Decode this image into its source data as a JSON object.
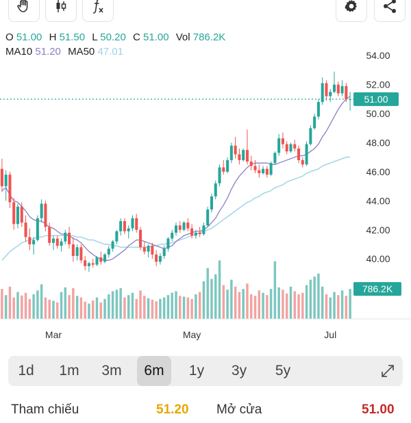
{
  "toolbar": {
    "buttons": [
      {
        "name": "hand-icon"
      },
      {
        "name": "candlestick-icon"
      },
      {
        "name": "function-icon"
      },
      {
        "name": "gear-icon"
      },
      {
        "name": "share-icon"
      }
    ]
  },
  "ohlc": {
    "o_label": "O",
    "o": "51.00",
    "h_label": "H",
    "h": "51.50",
    "l_label": "L",
    "l": "50.20",
    "c_label": "C",
    "c": "51.00",
    "vol_label": "Vol",
    "vol": "786.2K"
  },
  "ma": {
    "ma10_label": "MA10",
    "ma10": "51.20",
    "ma50_label": "MA50",
    "ma50": "47.01"
  },
  "colors": {
    "up": "#26a69a",
    "down": "#ef5350",
    "up_volume": "#7cc7bf",
    "down_volume": "#f2a3a1",
    "ma10": "#8e7cc3",
    "ma50": "#a6d8e6",
    "badge": "#26a69a"
  },
  "chart_data": {
    "type": "candlestick",
    "price_axis": {
      "ticks": [
        "54.00",
        "52.00",
        "50.00",
        "48.00",
        "46.00",
        "44.00",
        "42.00",
        "40.00"
      ],
      "range": [
        38.5,
        55.0
      ]
    },
    "x_labels": [
      "Mar",
      "May",
      "Jul"
    ],
    "last_price_label": "51.00",
    "last_volume_label": "786.2K",
    "volume_range": [
      0,
      1600
    ],
    "candles": [
      [
        46.2,
        46.9,
        44.6,
        45.0
      ],
      [
        45.0,
        46.1,
        44.0,
        45.8
      ],
      [
        45.8,
        46.0,
        43.5,
        43.9
      ],
      [
        43.9,
        44.2,
        42.0,
        42.4
      ],
      [
        42.4,
        43.8,
        42.1,
        43.6
      ],
      [
        43.6,
        43.9,
        42.2,
        42.5
      ],
      [
        42.5,
        43.0,
        41.2,
        41.5
      ],
      [
        41.5,
        42.1,
        40.6,
        41.0
      ],
      [
        41.0,
        41.5,
        40.3,
        41.3
      ],
      [
        41.3,
        43.0,
        41.2,
        42.8
      ],
      [
        42.8,
        44.1,
        42.5,
        43.8
      ],
      [
        43.8,
        44.0,
        41.9,
        42.2
      ],
      [
        42.2,
        42.5,
        40.9,
        41.1
      ],
      [
        41.1,
        41.6,
        40.6,
        41.4
      ],
      [
        41.4,
        41.6,
        40.7,
        40.9
      ],
      [
        40.9,
        41.4,
        40.5,
        41.2
      ],
      [
        41.2,
        42.0,
        41.0,
        41.8
      ],
      [
        41.8,
        42.2,
        40.7,
        41.0
      ],
      [
        41.0,
        41.5,
        39.8,
        40.2
      ],
      [
        40.2,
        41.0,
        39.9,
        40.8
      ],
      [
        40.8,
        41.0,
        39.7,
        39.9
      ],
      [
        39.9,
        40.2,
        39.2,
        39.5
      ],
      [
        39.5,
        39.8,
        39.1,
        39.7
      ],
      [
        39.7,
        40.0,
        39.4,
        39.6
      ],
      [
        39.6,
        40.2,
        39.5,
        40.1
      ],
      [
        40.1,
        40.5,
        39.6,
        39.8
      ],
      [
        39.8,
        40.4,
        39.7,
        40.3
      ],
      [
        40.3,
        40.9,
        40.1,
        40.7
      ],
      [
        40.7,
        41.3,
        40.5,
        41.2
      ],
      [
        41.2,
        42.0,
        41.0,
        41.9
      ],
      [
        41.9,
        42.8,
        41.6,
        42.6
      ],
      [
        42.6,
        42.8,
        41.7,
        41.9
      ],
      [
        41.9,
        42.3,
        41.4,
        42.1
      ],
      [
        42.1,
        43.0,
        41.9,
        42.8
      ],
      [
        42.8,
        43.1,
        41.8,
        42.0
      ],
      [
        42.0,
        42.2,
        40.6,
        40.8
      ],
      [
        40.8,
        41.2,
        40.3,
        40.5
      ],
      [
        40.5,
        41.0,
        40.1,
        40.9
      ],
      [
        40.9,
        41.1,
        40.0,
        40.3
      ],
      [
        40.3,
        40.6,
        39.5,
        39.8
      ],
      [
        39.8,
        40.4,
        39.6,
        40.2
      ],
      [
        40.2,
        40.9,
        40.0,
        40.7
      ],
      [
        40.7,
        41.5,
        40.5,
        41.4
      ],
      [
        41.4,
        42.0,
        41.2,
        41.8
      ],
      [
        41.8,
        42.5,
        41.6,
        42.3
      ],
      [
        42.3,
        42.6,
        41.8,
        42.0
      ],
      [
        42.0,
        42.6,
        41.9,
        42.5
      ],
      [
        42.5,
        42.8,
        41.9,
        42.1
      ],
      [
        42.1,
        42.4,
        41.4,
        41.6
      ],
      [
        41.6,
        42.0,
        41.4,
        41.8
      ],
      [
        41.8,
        42.2,
        41.5,
        41.7
      ],
      [
        41.7,
        42.5,
        41.6,
        42.3
      ],
      [
        42.3,
        43.6,
        42.2,
        43.4
      ],
      [
        43.4,
        44.5,
        43.2,
        44.3
      ],
      [
        44.3,
        45.4,
        44.1,
        45.2
      ],
      [
        45.2,
        46.5,
        45.0,
        46.3
      ],
      [
        46.3,
        46.8,
        45.8,
        46.0
      ],
      [
        46.0,
        47.0,
        45.9,
        46.8
      ],
      [
        46.8,
        48.0,
        46.6,
        47.8
      ],
      [
        47.8,
        48.4,
        46.9,
        47.2
      ],
      [
        47.2,
        47.6,
        46.5,
        46.8
      ],
      [
        46.8,
        47.6,
        46.7,
        47.5
      ],
      [
        47.5,
        48.9,
        46.5,
        46.7
      ],
      [
        46.7,
        47.1,
        46.1,
        46.4
      ],
      [
        46.4,
        46.8,
        45.9,
        46.1
      ],
      [
        46.1,
        46.5,
        45.6,
        45.9
      ],
      [
        45.9,
        46.4,
        45.8,
        46.2
      ],
      [
        46.2,
        46.4,
        45.6,
        45.8
      ],
      [
        45.8,
        46.7,
        45.7,
        46.6
      ],
      [
        46.6,
        47.4,
        46.5,
        47.3
      ],
      [
        47.3,
        48.6,
        47.1,
        48.3
      ],
      [
        48.3,
        48.7,
        47.6,
        47.9
      ],
      [
        47.9,
        48.1,
        47.2,
        47.4
      ],
      [
        47.4,
        48.0,
        47.3,
        47.9
      ],
      [
        47.9,
        48.2,
        47.4,
        47.6
      ],
      [
        47.6,
        47.8,
        46.6,
        46.8
      ],
      [
        46.8,
        47.0,
        46.3,
        46.5
      ],
      [
        46.5,
        48.1,
        46.4,
        47.9
      ],
      [
        47.9,
        49.2,
        47.8,
        49.0
      ],
      [
        49.0,
        50.0,
        48.9,
        49.8
      ],
      [
        49.8,
        51.0,
        49.6,
        50.8
      ],
      [
        50.8,
        52.5,
        50.6,
        52.1
      ],
      [
        52.1,
        52.3,
        50.9,
        51.2
      ],
      [
        51.2,
        51.7,
        50.8,
        51.5
      ],
      [
        51.5,
        52.9,
        51.4,
        52.0
      ],
      [
        52.0,
        52.2,
        51.2,
        51.4
      ],
      [
        51.4,
        52.3,
        51.2,
        51.9
      ],
      [
        51.9,
        52.1,
        50.8,
        51.0
      ],
      [
        51.0,
        51.5,
        50.2,
        51.0
      ]
    ],
    "volumes": [
      780,
      620,
      840,
      560,
      700,
      610,
      680,
      520,
      640,
      740,
      900,
      560,
      500,
      470,
      430,
      700,
      820,
      620,
      800,
      600,
      560,
      450,
      400,
      480,
      560,
      430,
      520,
      640,
      720,
      760,
      800,
      560,
      620,
      680,
      520,
      740,
      600,
      540,
      500,
      460,
      520,
      560,
      620,
      680,
      720,
      600,
      580,
      560,
      520,
      640,
      700,
      980,
      1320,
      1040,
      1160,
      1520,
      880,
      760,
      1020,
      840,
      700,
      780,
      920,
      640,
      600,
      740,
      680,
      620,
      780,
      1500,
      820,
      760,
      660,
      840,
      720,
      640,
      680,
      880,
      1020,
      1100,
      1180,
      840,
      640,
      560,
      700,
      620,
      740,
      600,
      780
    ],
    "ma10": [
      44.7,
      44.9,
      44.4,
      44.0,
      43.9,
      43.6,
      43.3,
      42.9,
      42.7,
      42.6,
      42.6,
      42.4,
      42.2,
      42.1,
      41.9,
      41.7,
      41.7,
      41.6,
      41.4,
      41.3,
      41.1,
      40.8,
      40.5,
      40.3,
      40.1,
      40.0,
      39.9,
      39.9,
      40.0,
      40.2,
      40.4,
      40.6,
      40.9,
      41.1,
      41.3,
      41.3,
      41.2,
      41.1,
      41.0,
      40.9,
      40.8,
      40.7,
      40.8,
      40.9,
      41.2,
      41.4,
      41.6,
      41.7,
      41.8,
      41.9,
      41.9,
      42.0,
      42.2,
      42.5,
      42.8,
      43.3,
      43.7,
      44.2,
      44.8,
      45.3,
      45.7,
      46.0,
      46.3,
      46.5,
      46.6,
      46.6,
      46.6,
      46.6,
      46.5,
      46.5,
      46.6,
      46.7,
      46.8,
      46.9,
      47.0,
      47.1,
      47.1,
      47.2,
      47.4,
      47.6,
      47.9,
      48.4,
      48.8,
      49.3,
      49.8,
      50.3,
      50.7,
      51.0,
      51.2
    ],
    "ma50": [
      39.9,
      40.2,
      40.5,
      40.7,
      40.9,
      41.1,
      41.2,
      41.3,
      41.4,
      41.5,
      41.5,
      41.6,
      41.6,
      41.6,
      41.6,
      41.6,
      41.6,
      41.6,
      41.6,
      41.5,
      41.5,
      41.4,
      41.3,
      41.3,
      41.2,
      41.1,
      41.0,
      41.0,
      40.9,
      40.9,
      40.8,
      40.8,
      40.8,
      40.8,
      40.8,
      40.8,
      40.8,
      40.8,
      40.9,
      40.9,
      41.0,
      41.0,
      41.1,
      41.1,
      41.2,
      41.3,
      41.4,
      41.5,
      41.6,
      41.7,
      41.8,
      41.9,
      42.0,
      42.1,
      42.3,
      42.5,
      42.7,
      42.9,
      43.1,
      43.3,
      43.5,
      43.7,
      43.9,
      44.0,
      44.2,
      44.3,
      44.5,
      44.6,
      44.7,
      44.9,
      45.0,
      45.1,
      45.3,
      45.4,
      45.5,
      45.6,
      45.7,
      45.9,
      46.0,
      46.1,
      46.2,
      46.4,
      46.5,
      46.6,
      46.7,
      46.8,
      46.9,
      47.0,
      47.01
    ]
  },
  "timeframes": {
    "items": [
      {
        "label": "1d"
      },
      {
        "label": "1m"
      },
      {
        "label": "3m"
      },
      {
        "label": "6m",
        "active": true
      },
      {
        "label": "1y"
      },
      {
        "label": "3y"
      },
      {
        "label": "5y"
      }
    ],
    "expand_icon": "expand-icon"
  },
  "bottom": {
    "ref_label": "Tham chiếu",
    "ref_value": "51.20",
    "open_label": "Mở cửa",
    "open_value": "51.00"
  }
}
